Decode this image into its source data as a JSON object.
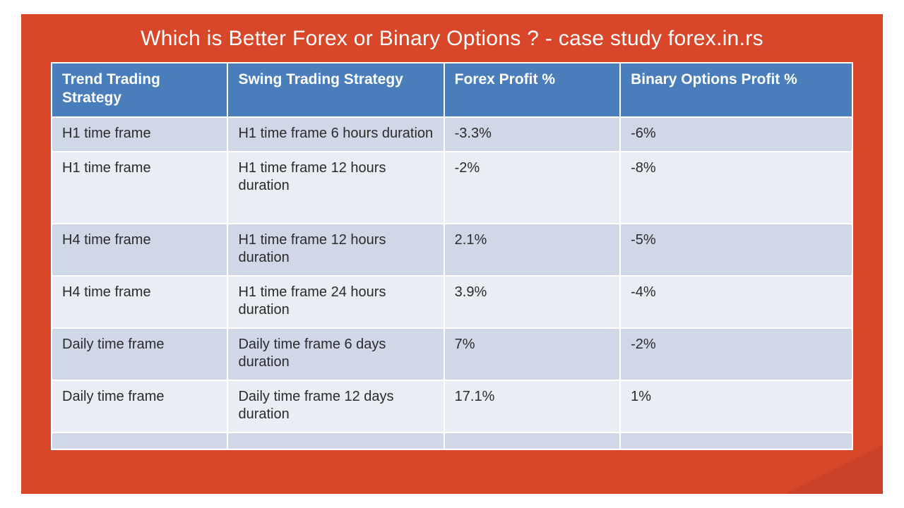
{
  "title": "Which is Better Forex or Binary Options ? - case study forex.in.rs",
  "columns": [
    "Trend Trading Strategy",
    "Swing Trading Strategy",
    "Forex Profit %",
    "Binary Options Profit %"
  ],
  "rows": [
    {
      "c0": "H1 time frame",
      "c1": "H1 time frame 6 hours duration",
      "c2": "-3.3%",
      "c3": "-6%",
      "tall": false
    },
    {
      "c0": "H1 time frame",
      "c1": "H1 time frame 12 hours duration",
      "c2": "-2%",
      "c3": "-8%",
      "tall": true
    },
    {
      "c0": "H4 time frame",
      "c1": "H1 time frame 12 hours duration",
      "c2": "2.1%",
      "c3": "-5%",
      "tall": false
    },
    {
      "c0": "H4 time frame",
      "c1": "H1 time frame 24 hours duration",
      "c2": "3.9%",
      "c3": "-4%",
      "tall": false
    },
    {
      "c0": "Daily time frame",
      "c1": "Daily time frame 6 days duration",
      "c2": "7%",
      "c3": "-2%",
      "tall": false
    },
    {
      "c0": "Daily time frame",
      "c1": "Daily time frame 12 days duration",
      "c2": "17.1%",
      "c3": "1%",
      "tall": false
    }
  ],
  "style": {
    "slide_bg": "#d9472b",
    "title_color": "#ffffff",
    "title_fontsize": 30,
    "header_bg": "#4a7ebb",
    "header_color": "#ffffff",
    "header_fontsize": 21,
    "cell_fontsize": 20,
    "cell_color": "#2b2b2b",
    "row_odd_bg": "#d0d8e8",
    "row_even_bg": "#e9edf4",
    "border_color": "#ffffff",
    "col_widths_pct": [
      22,
      27,
      22,
      29
    ]
  }
}
